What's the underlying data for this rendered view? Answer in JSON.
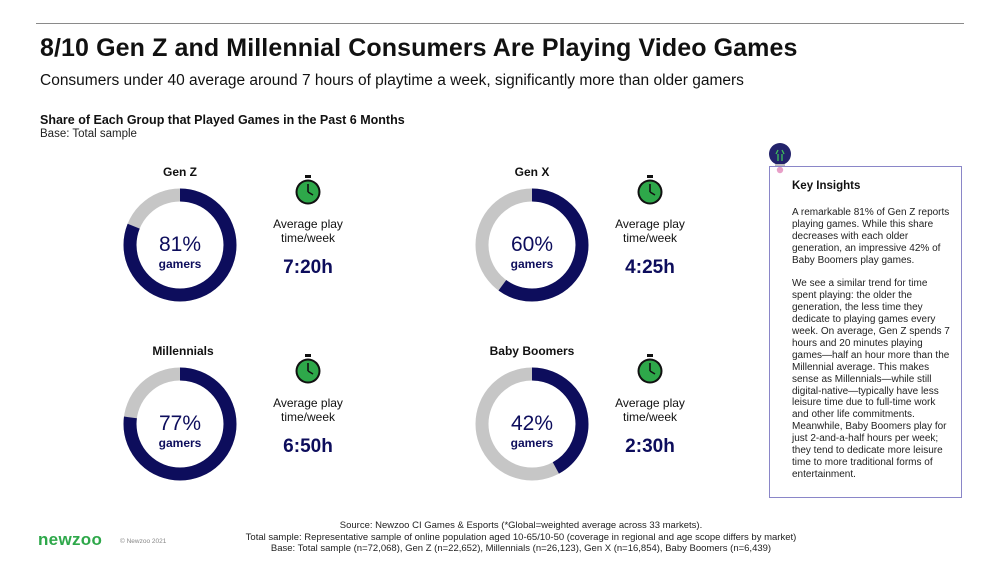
{
  "header": {
    "title": "8/10 Gen Z and Millennial Consumers Are Playing Video Games",
    "subtitle": "Consumers under 40 average around 7 hours of playtime a week, significantly more than older gamers",
    "chart_title": "Share of Each Group that Played Games in the Past 6 Months",
    "chart_base": "Base: Total sample"
  },
  "colors": {
    "played": "#0d0d5c",
    "not_played": "#c6c6c6",
    "clock": "#2ea84a",
    "brand": "#2ea84a"
  },
  "chart_data": {
    "type": "pie",
    "title": "Share of Each Group that Played Games in the Past 6 Months",
    "categories": [
      "Gen Z",
      "Gen X",
      "Millennials",
      "Baby Boomers"
    ],
    "series": [
      {
        "values": [
          81,
          60,
          77,
          42
        ]
      }
    ],
    "unit_label": "gamers",
    "avg_play_time": [
      "7:20h",
      "4:25h",
      "6:50h",
      "2:30h"
    ]
  },
  "panels": [
    {
      "group": "Gen Z",
      "pct_label": "81%",
      "unit": "gamers",
      "avg_label": "Average play time/week",
      "avg_value": "7:20h"
    },
    {
      "group": "Gen X",
      "pct_label": "60%",
      "unit": "gamers",
      "avg_label": "Average play time/week",
      "avg_value": "4:25h"
    },
    {
      "group": "Millennials",
      "pct_label": "77%",
      "unit": "gamers",
      "avg_label": "Average play time/week",
      "avg_value": "6:50h"
    },
    {
      "group": "Baby Boomers",
      "pct_label": "42%",
      "unit": "gamers",
      "avg_label": "Average play time/week",
      "avg_value": "2:30h"
    }
  ],
  "insights": {
    "title": "Key Insights",
    "paragraphs": [
      "A remarkable 81% of Gen Z reports playing games. While this share decreases with each older generation, an impressive 42% of Baby Boomers play games.",
      "We see a similar trend for time spent playing: the older the generation, the less time they dedicate to playing games every week. On average, Gen Z spends 7 hours and 20 minutes playing games—half an hour more than the Millennial average. This makes sense as Millennials—while still digital-native—typically have less leisure time due to full-time work and other life commitments. Meanwhile, Baby Boomers play for just 2-and-a-half hours per week; they tend to dedicate more leisure time to more traditional forms of entertainment."
    ]
  },
  "footer": {
    "lines": [
      "Source: Newzoo CI Games & Esports (*Global=weighted average across 33 markets).",
      "Total sample: Representative sample of online population aged 10-65/10-50 (coverage in regional and age scope differs by market)",
      "Base: Total sample (n=72,068), Gen Z (n=22,652), Millennials (n=26,123), Gen X (n=16,854), Baby Boomers (n=6,439)"
    ],
    "brand": "newzoo",
    "copyright": "© Newzoo 2021"
  }
}
